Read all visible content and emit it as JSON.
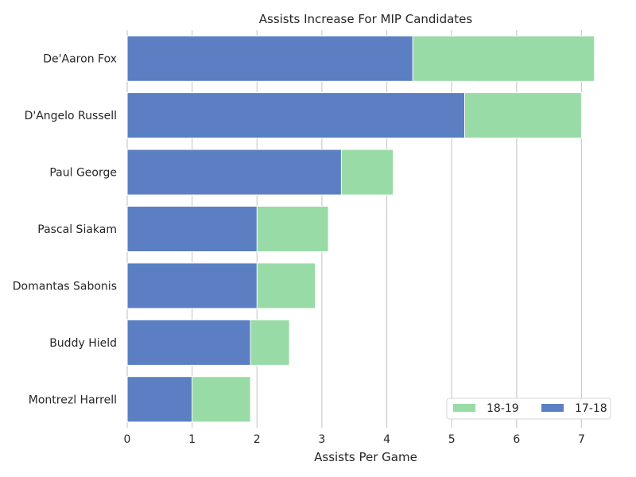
{
  "chart_data": {
    "type": "bar",
    "orientation": "horizontal",
    "stacked": false,
    "title": "Assists Increase For MIP Candidates",
    "xlabel": "Assists Per Game",
    "ylabel": "",
    "xlim": [
      0,
      7.35
    ],
    "xticks": [
      "0",
      "1",
      "2",
      "3",
      "4",
      "5",
      "6",
      "7"
    ],
    "categories": [
      "De'Aaron Fox",
      "D'Angelo Russell",
      "Paul George",
      "Pascal Siakam",
      "Domantas Sabonis",
      "Buddy Hield",
      "Montrezl Harrell"
    ],
    "series": [
      {
        "name": "18-19",
        "color": "#98dba6",
        "values": [
          7.2,
          7.0,
          4.1,
          3.1,
          2.9,
          2.5,
          1.9
        ]
      },
      {
        "name": "17-18",
        "color": "#5b7fc2",
        "values": [
          4.4,
          5.2,
          3.3,
          2.0,
          2.0,
          1.9,
          1.0
        ]
      }
    ],
    "grid": "vertical",
    "legend": "lower-right"
  }
}
